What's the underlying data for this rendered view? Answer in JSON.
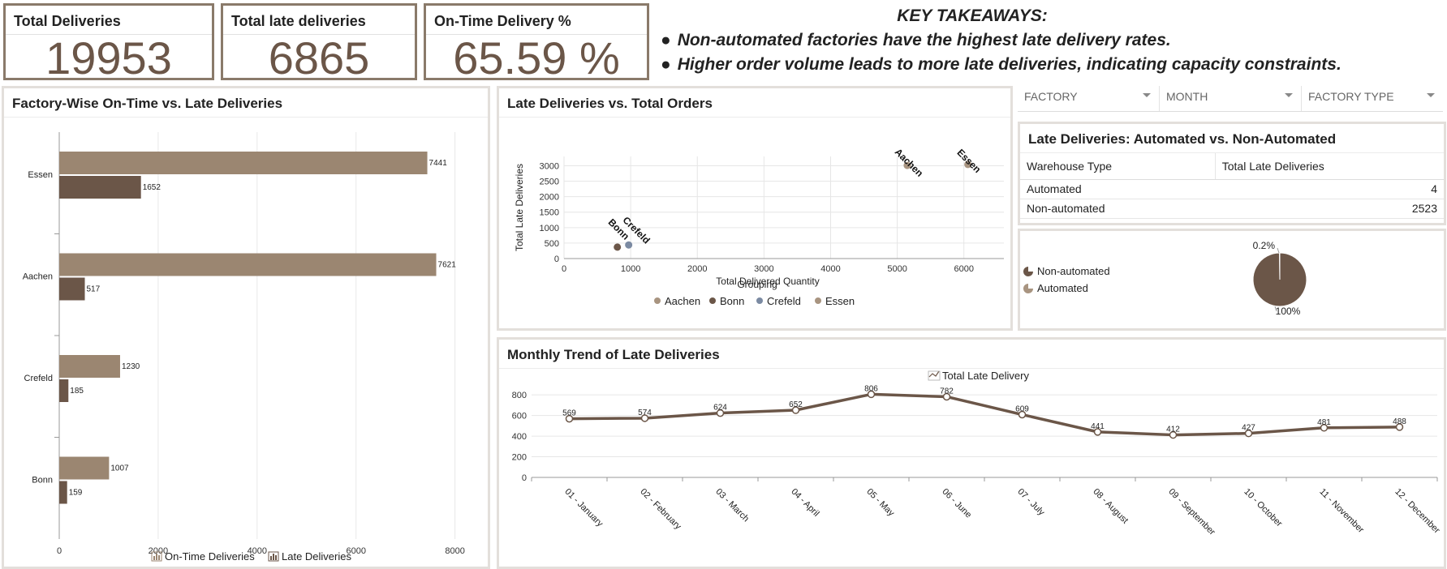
{
  "kpis": {
    "total_deliveries": {
      "title": "Total Deliveries",
      "value": "19953"
    },
    "total_late": {
      "title": "Total late deliveries",
      "value": "6865"
    },
    "on_time_pct": {
      "title": "On-Time Delivery %",
      "value": "65.59 %"
    }
  },
  "takeaways": {
    "title": "KEY TAKEAWAYS:",
    "items": [
      "Non-automated factories have the highest late delivery rates.",
      "Higher order volume leads to more late deliveries, indicating capacity constraints."
    ]
  },
  "slicers": [
    {
      "label": "FACTORY"
    },
    {
      "label": "MONTH"
    },
    {
      "label": "FACTORY TYPE"
    }
  ],
  "colors": {
    "dark_brown": "#6b5648",
    "light_brown": "#9b8671",
    "crefeld_blue": "#7b8aa2",
    "essen_tan": "#a89480",
    "border": "#8a7a6a"
  },
  "factory_chart": {
    "title": "Factory-Wise On-Time vs. Late Deliveries",
    "chart_data": {
      "type": "bar",
      "orientation": "horizontal",
      "categories": [
        "Essen",
        "Aachen",
        "Crefeld",
        "Bonn"
      ],
      "series": [
        {
          "name": "On-Time Deliveries",
          "values": [
            7441,
            7621,
            1230,
            1007
          ]
        },
        {
          "name": "Late Deliveries",
          "values": [
            1652,
            517,
            185,
            159
          ]
        }
      ],
      "xlim": [
        0,
        8400
      ],
      "xticks": [
        0,
        2000,
        4000,
        6000,
        8000
      ],
      "legend": "bottom",
      "grid": true
    }
  },
  "scatter_chart": {
    "title": "Late Deliveries vs. Total Orders",
    "legend_title": "Grouping",
    "chart_data": {
      "type": "scatter",
      "xlabel": "Total Delivered Quantity",
      "ylabel": "Total Late Deliveries",
      "xlim": [
        0,
        6600
      ],
      "ylim": [
        0,
        3300
      ],
      "xticks": [
        0,
        1000,
        2000,
        3000,
        4000,
        5000,
        6000
      ],
      "yticks": [
        0,
        500,
        1000,
        1500,
        2000,
        2500,
        3000
      ],
      "points": [
        {
          "name": "Aachen",
          "x": 5150,
          "y": 3010
        },
        {
          "name": "Bonn",
          "x": 800,
          "y": 370
        },
        {
          "name": "Crefeld",
          "x": 970,
          "y": 440
        },
        {
          "name": "Essen",
          "x": 6060,
          "y": 3040
        }
      ],
      "legend": [
        "Aachen",
        "Bonn",
        "Crefeld",
        "Essen"
      ]
    }
  },
  "automation_table": {
    "title": "Late Deliveries: Automated vs. Non-Automated",
    "headers": [
      "Warehouse Type",
      "Total Late Deliveries"
    ],
    "rows": [
      {
        "type": "Automated",
        "value": "4"
      },
      {
        "type": "Non-automated",
        "value": "2523"
      }
    ]
  },
  "pie_chart": {
    "chart_data": {
      "type": "pie",
      "slices": [
        {
          "name": "Non-automated",
          "value": 99.8
        },
        {
          "name": "Automated",
          "value": 0.2
        }
      ],
      "labels": [
        "0.2%",
        "100%"
      ],
      "legend": "left"
    }
  },
  "monthly_chart": {
    "title": "Monthly Trend of Late Deliveries",
    "legend_label": "Total Late Delivery",
    "chart_data": {
      "type": "line",
      "categories": [
        "01 - January",
        "02 - February",
        "03 - March",
        "04 - April",
        "05 - May",
        "06 - June",
        "07 - July",
        "08 - August",
        "09 - September",
        "10 - October",
        "11 - November",
        "12 - December"
      ],
      "series": [
        {
          "name": "Total Late Delivery",
          "values": [
            569,
            574,
            624,
            652,
            806,
            782,
            609,
            441,
            412,
            427,
            481,
            488
          ]
        }
      ],
      "ylim": [
        0,
        880
      ],
      "yticks": [
        0,
        200,
        400,
        600,
        800
      ],
      "legend": "top",
      "grid": true
    }
  }
}
